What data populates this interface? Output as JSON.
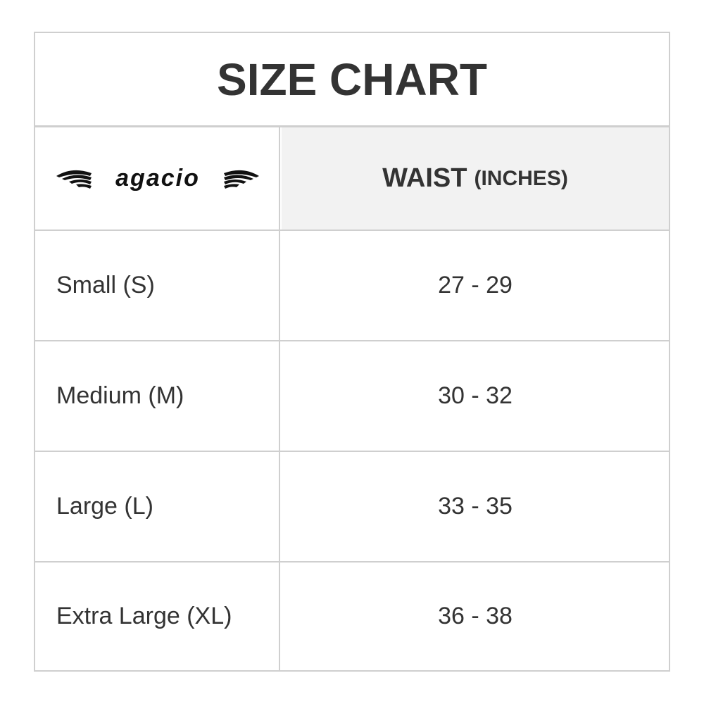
{
  "title": "SIZE CHART",
  "brand": "agacio",
  "header": {
    "measure": "WAIST",
    "unit": "(INCHES)"
  },
  "rows": [
    {
      "size": "Small (S)",
      "waist": "27 - 29"
    },
    {
      "size": "Medium (M)",
      "waist": "30 - 32"
    },
    {
      "size": "Large (L)",
      "waist": "33 - 35"
    },
    {
      "size": "Extra Large (XL)",
      "waist": "36 - 38"
    }
  ]
}
